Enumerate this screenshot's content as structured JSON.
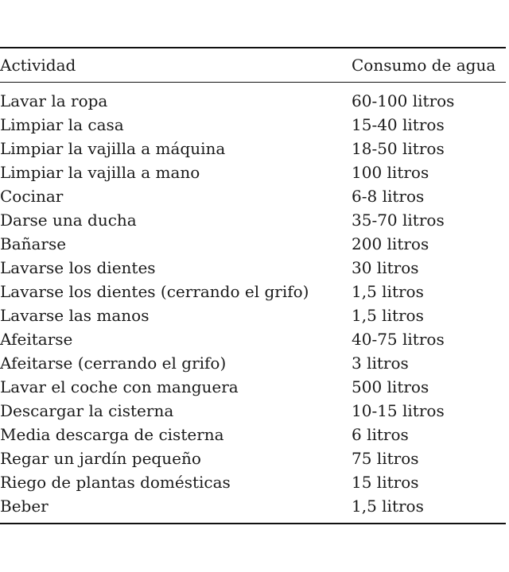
{
  "table": {
    "headers": {
      "activity": "Actividad",
      "water": "Consumo de agua"
    },
    "rows": [
      {
        "activity": "Lavar la ropa",
        "water": "60-100 litros"
      },
      {
        "activity": "Limpiar la casa",
        "water": "15-40 litros"
      },
      {
        "activity": "Limpiar la vajilla a máquina",
        "water": "18-50 litros"
      },
      {
        "activity": "Limpiar la vajilla a mano",
        "water": "100 litros"
      },
      {
        "activity": "Cocinar",
        "water": "6-8 litros"
      },
      {
        "activity": "Darse una ducha",
        "water": "35-70 litros"
      },
      {
        "activity": "Bañarse",
        "water": "200 litros"
      },
      {
        "activity": "Lavarse los dientes",
        "water": "30 litros"
      },
      {
        "activity": "Lavarse los dientes (cerrando el grifo)",
        "water": "1,5 litros"
      },
      {
        "activity": "Lavarse las manos",
        "water": "1,5 litros"
      },
      {
        "activity": "Afeitarse",
        "water": "40-75 litros"
      },
      {
        "activity": "Afeitarse (cerrando el grifo)",
        "water": "3 litros"
      },
      {
        "activity": "Lavar el coche con manguera",
        "water": "500 litros"
      },
      {
        "activity": "Descargar la cisterna",
        "water": "10-15 litros"
      },
      {
        "activity": "Media descarga de cisterna",
        "water": "6 litros"
      },
      {
        "activity": "Regar un jardín pequeño",
        "water": "75 litros"
      },
      {
        "activity": "Riego de plantas domésticas",
        "water": "15 litros"
      },
      {
        "activity": "Beber",
        "water": "1,5 litros"
      }
    ]
  }
}
